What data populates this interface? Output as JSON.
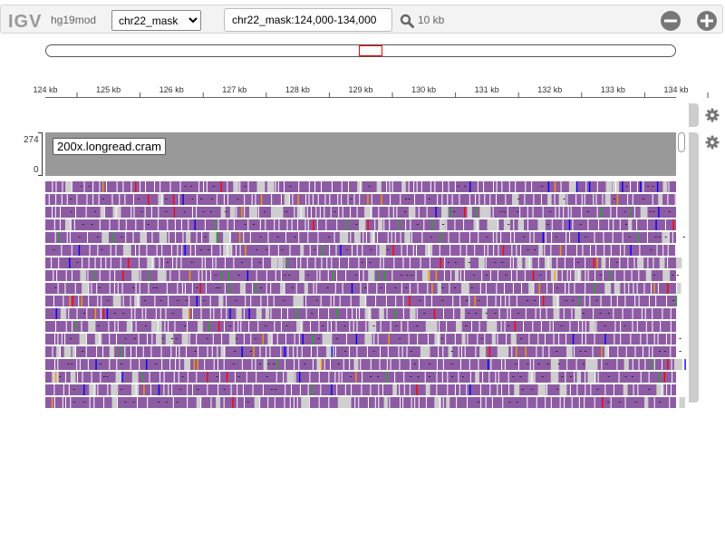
{
  "navbar": {
    "logo": "IGV",
    "genome": "hg19mod",
    "chromosome_selected": "chr22_mask",
    "locus_value": "chr22_mask:124,000-134,000",
    "window_size": "10 kb",
    "search_icon": "search-icon",
    "zoom_out_icon": "minus-circle-icon",
    "zoom_in_icon": "plus-circle-icon"
  },
  "ruler": {
    "ticks": [
      "124 kb",
      "125 kb",
      "126 kb",
      "127 kb",
      "128 kb",
      "129 kb",
      "130 kb",
      "131 kb",
      "132 kb",
      "133 kb",
      "134 kb"
    ]
  },
  "coverage": {
    "max_label": "274",
    "min_label": "0"
  },
  "track": {
    "name": "200x.longread.cram",
    "read_color": "#8d5ba3",
    "coverage_color": "#999999",
    "mismatch_colors": [
      "#22aa22",
      "#ff0000",
      "#0000ff",
      "#ff9900"
    ]
  }
}
